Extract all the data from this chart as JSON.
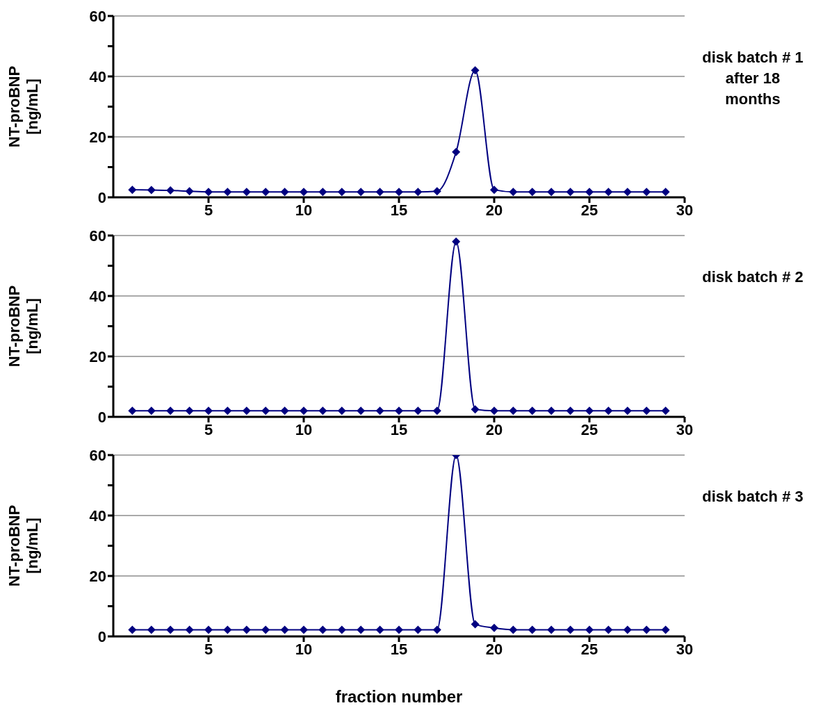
{
  "chart_data": [
    {
      "type": "line",
      "ylabel": "NT-proBNP [ng/mL]",
      "annotations": [
        "disk batch # 1 after 18 months"
      ],
      "x": [
        1,
        2,
        3,
        4,
        5,
        6,
        7,
        8,
        9,
        10,
        11,
        12,
        13,
        14,
        15,
        16,
        17,
        18,
        19,
        20,
        21,
        22,
        23,
        24,
        25,
        26,
        27,
        28,
        29
      ],
      "series": [
        {
          "color": "#000080",
          "values": [
            2.5,
            2.4,
            2.3,
            2,
            1.8,
            1.8,
            1.8,
            1.8,
            1.8,
            1.8,
            1.8,
            1.8,
            1.8,
            1.8,
            1.8,
            1.8,
            2,
            15,
            42,
            2.5,
            1.8,
            1.8,
            1.8,
            1.8,
            1.8,
            1.8,
            1.8,
            1.8,
            1.8
          ]
        }
      ],
      "xlim": [
        0,
        30
      ],
      "xticks": [
        5,
        10,
        15,
        20,
        25,
        30
      ],
      "ylim": [
        0,
        60
      ],
      "yticks": [
        0,
        {
          "value": 10,
          "label": null
        },
        20,
        {
          "value": 30,
          "label": null
        },
        40,
        {
          "value": 50,
          "label": null
        },
        60
      ],
      "grid": "y",
      "marker": "diamond",
      "line_style": "solid"
    },
    {
      "type": "line",
      "ylabel": "NT-proBNP [ng/mL]",
      "annotations": [
        "disk batch # 2"
      ],
      "x": [
        1,
        2,
        3,
        4,
        5,
        6,
        7,
        8,
        9,
        10,
        11,
        12,
        13,
        14,
        15,
        16,
        17,
        18,
        19,
        20,
        21,
        22,
        23,
        24,
        25,
        26,
        27,
        28,
        29
      ],
      "series": [
        {
          "color": "#000080",
          "values": [
            2,
            2,
            2,
            2,
            2,
            2,
            2,
            2,
            2,
            2,
            2,
            2,
            2,
            2,
            2,
            2,
            2,
            58,
            2.5,
            2,
            2,
            2,
            2,
            2,
            2,
            2,
            2,
            2,
            2
          ]
        }
      ],
      "xlim": [
        0,
        30
      ],
      "xticks": [
        5,
        10,
        15,
        20,
        25,
        30
      ],
      "ylim": [
        0,
        60
      ],
      "yticks": [
        0,
        {
          "value": 10,
          "label": null
        },
        20,
        {
          "value": 30,
          "label": null
        },
        40,
        {
          "value": 50,
          "label": null
        },
        60
      ],
      "grid": "y",
      "marker": "diamond",
      "line_style": "solid"
    },
    {
      "type": "line",
      "ylabel": "NT-proBNP [ng/mL]",
      "xlabel": "fraction number",
      "annotations": [
        "disk batch # 3"
      ],
      "x": [
        1,
        2,
        3,
        4,
        5,
        6,
        7,
        8,
        9,
        10,
        11,
        12,
        13,
        14,
        15,
        16,
        17,
        18,
        19,
        20,
        21,
        22,
        23,
        24,
        25,
        26,
        27,
        28,
        29
      ],
      "series": [
        {
          "color": "#000080",
          "values": [
            2.2,
            2.2,
            2.2,
            2.2,
            2.2,
            2.2,
            2.2,
            2.2,
            2.2,
            2.2,
            2.2,
            2.2,
            2.2,
            2.2,
            2.2,
            2.2,
            2.2,
            60,
            4,
            2.8,
            2.2,
            2.2,
            2.2,
            2.2,
            2.2,
            2.2,
            2.2,
            2.2,
            2.2
          ]
        }
      ],
      "xlim": [
        0,
        30
      ],
      "xticks": [
        5,
        10,
        15,
        20,
        25,
        30
      ],
      "ylim": [
        0,
        60
      ],
      "yticks": [
        0,
        {
          "value": 10,
          "label": null
        },
        20,
        {
          "value": 30,
          "label": null
        },
        40,
        {
          "value": 50,
          "label": null
        },
        60
      ],
      "grid": "y",
      "marker": "diamond",
      "line_style": "solid"
    }
  ]
}
